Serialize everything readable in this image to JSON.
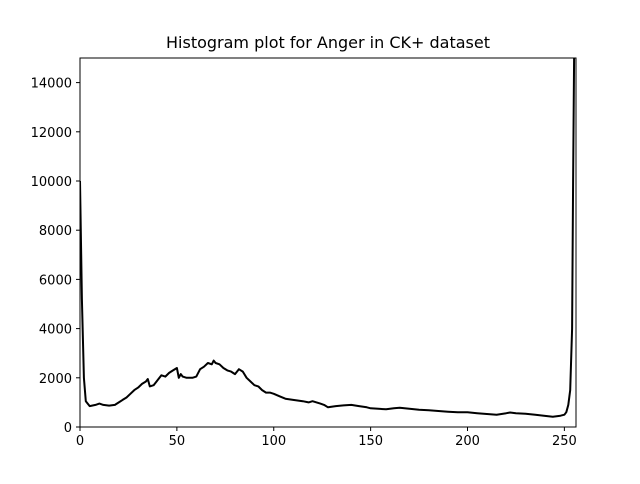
{
  "chart_data": {
    "type": "line",
    "title": "Histogram plot for Anger in CK+ dataset",
    "xlabel": "",
    "ylabel": "",
    "xlim": [
      0,
      256
    ],
    "ylim": [
      0,
      15000
    ],
    "xticks": [
      0,
      50,
      100,
      150,
      200,
      250
    ],
    "yticks": [
      0,
      2000,
      4000,
      6000,
      8000,
      10000,
      12000,
      14000
    ],
    "grid": false,
    "line_color": "#000000",
    "series": [
      {
        "x": [
          0,
          1,
          2,
          3,
          5,
          8,
          10,
          12,
          15,
          18,
          20,
          22,
          24,
          26,
          28,
          30,
          32,
          34,
          35,
          36,
          38,
          40,
          42,
          44,
          46,
          48,
          50,
          51,
          52,
          53,
          55,
          58,
          60,
          62,
          64,
          66,
          68,
          69,
          70,
          72,
          74,
          76,
          78,
          80,
          82,
          84,
          86,
          88,
          90,
          92,
          94,
          96,
          98,
          100,
          103,
          106,
          110,
          115,
          118,
          120,
          124,
          126,
          128,
          132,
          136,
          140,
          144,
          148,
          150,
          154,
          158,
          162,
          165,
          170,
          175,
          180,
          185,
          190,
          195,
          200,
          205,
          210,
          215,
          220,
          222,
          225,
          230,
          235,
          240,
          244,
          248,
          250,
          251,
          252,
          253,
          254,
          254.5,
          255
        ],
        "y": [
          10000,
          5200,
          2000,
          1050,
          850,
          900,
          950,
          900,
          870,
          900,
          1000,
          1100,
          1200,
          1350,
          1500,
          1600,
          1750,
          1850,
          1950,
          1650,
          1700,
          1900,
          2100,
          2050,
          2200,
          2300,
          2400,
          2000,
          2150,
          2050,
          2000,
          2000,
          2050,
          2350,
          2450,
          2600,
          2550,
          2700,
          2600,
          2550,
          2400,
          2300,
          2250,
          2150,
          2350,
          2250,
          2000,
          1850,
          1700,
          1650,
          1500,
          1400,
          1400,
          1350,
          1250,
          1150,
          1100,
          1050,
          1000,
          1050,
          950,
          900,
          800,
          850,
          880,
          900,
          850,
          800,
          760,
          740,
          720,
          760,
          780,
          740,
          700,
          680,
          650,
          620,
          600,
          600,
          560,
          530,
          500,
          560,
          590,
          560,
          540,
          500,
          450,
          420,
          460,
          500,
          600,
          900,
          1500,
          4000,
          10000,
          15000
        ]
      }
    ]
  }
}
